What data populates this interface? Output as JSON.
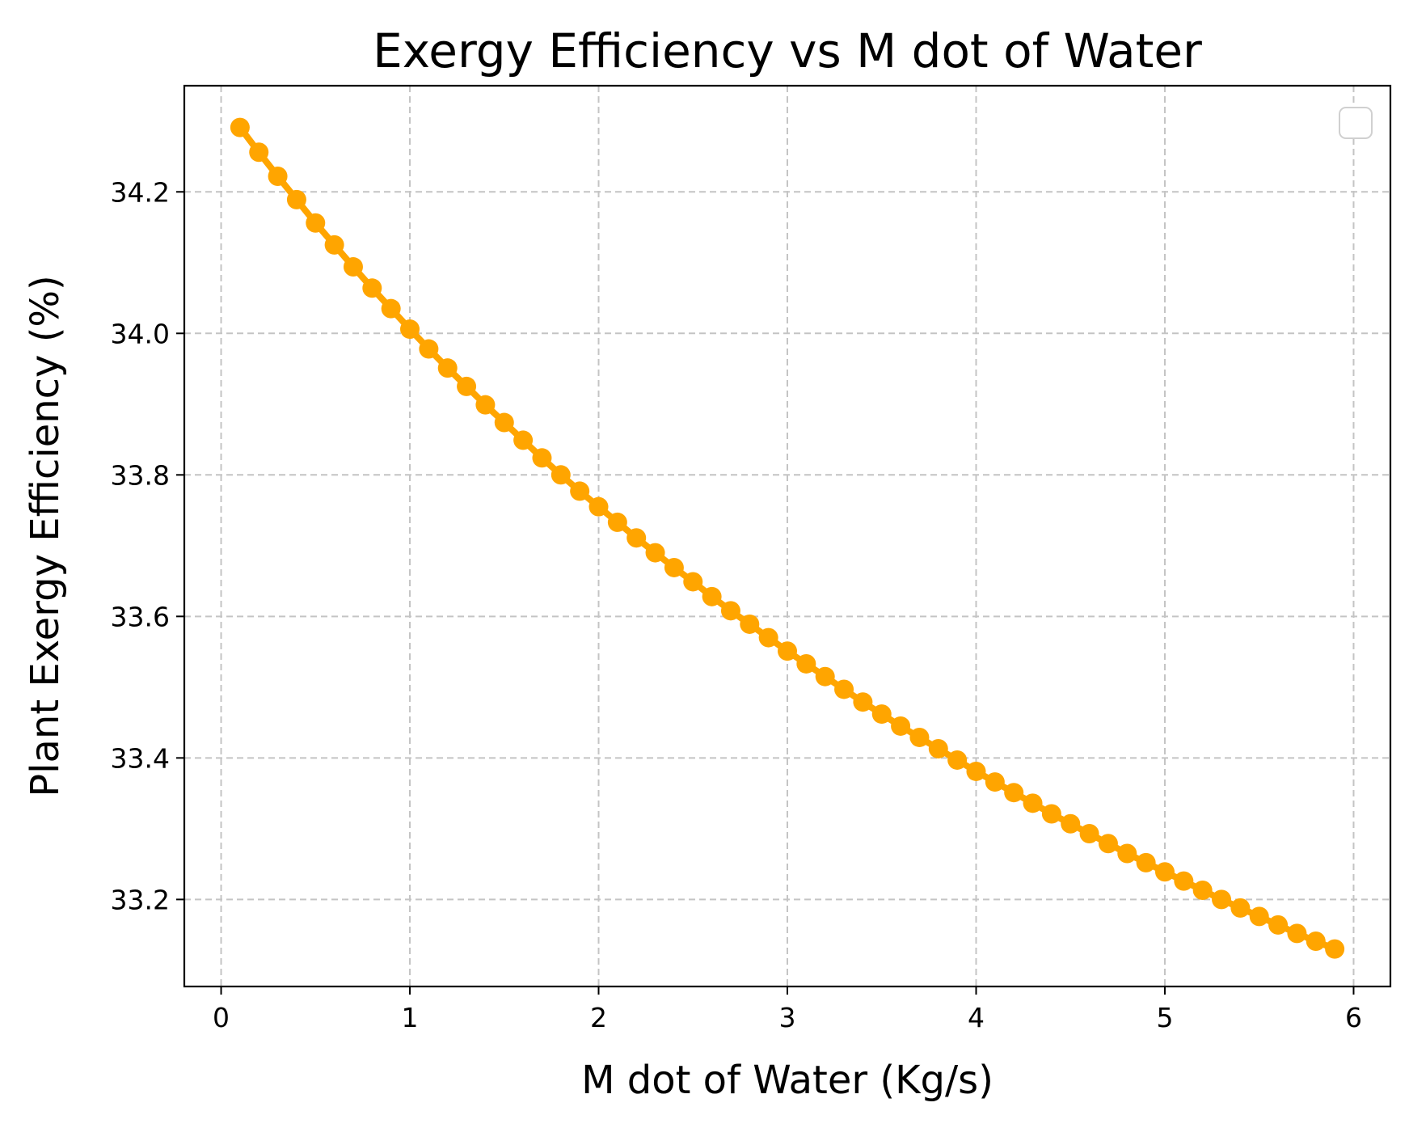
{
  "chart_data": {
    "type": "line",
    "title": "Exergy Efficiency vs M dot of Water",
    "xlabel": "M dot of Water (Kg/s)",
    "ylabel": "Plant Exergy Efficiency (%)",
    "xlim": [
      -0.195,
      6.195
    ],
    "ylim": [
      33.077,
      34.35
    ],
    "xticks": [
      0,
      1,
      2,
      3,
      4,
      5,
      6
    ],
    "xtick_labels": [
      "0",
      "1",
      "2",
      "3",
      "4",
      "5",
      "6"
    ],
    "yticks": [
      33.2,
      33.4,
      33.6,
      33.8,
      34.0,
      34.2
    ],
    "ytick_labels": [
      "33.2",
      "33.4",
      "33.6",
      "33.8",
      "34.0",
      "34.2"
    ],
    "grid": true,
    "legend": {
      "placement": "top-right",
      "entries": []
    },
    "series": [
      {
        "color": "#ffa500",
        "marker": "circle",
        "x": [
          0.1,
          0.2,
          0.3,
          0.4,
          0.5,
          0.6,
          0.7,
          0.8,
          0.9,
          1.0,
          1.1,
          1.2,
          1.3,
          1.4,
          1.5,
          1.6,
          1.7,
          1.8,
          1.9,
          2.0,
          2.1,
          2.2,
          2.3,
          2.4,
          2.5,
          2.6,
          2.7,
          2.8,
          2.9,
          3.0,
          3.1,
          3.2,
          3.3,
          3.4,
          3.5,
          3.6,
          3.7,
          3.8,
          3.9,
          4.0,
          4.1,
          4.2,
          4.3,
          4.4,
          4.5,
          4.6,
          4.7,
          4.8,
          4.9,
          5.0,
          5.1,
          5.2,
          5.3,
          5.4,
          5.5,
          5.6,
          5.7,
          5.8,
          5.9
        ],
        "y": [
          34.291,
          34.256,
          34.222,
          34.189,
          34.156,
          34.125,
          34.094,
          34.064,
          34.035,
          34.006,
          33.978,
          33.951,
          33.925,
          33.899,
          33.874,
          33.849,
          33.824,
          33.8,
          33.777,
          33.755,
          33.733,
          33.711,
          33.69,
          33.669,
          33.649,
          33.628,
          33.608,
          33.589,
          33.57,
          33.551,
          33.533,
          33.515,
          33.497,
          33.479,
          33.462,
          33.445,
          33.429,
          33.413,
          33.397,
          33.381,
          33.366,
          33.351,
          33.336,
          33.321,
          33.307,
          33.293,
          33.279,
          33.265,
          33.252,
          33.239,
          33.226,
          33.213,
          33.2,
          33.188,
          33.176,
          33.164,
          33.152,
          33.141,
          33.13
        ]
      }
    ]
  }
}
